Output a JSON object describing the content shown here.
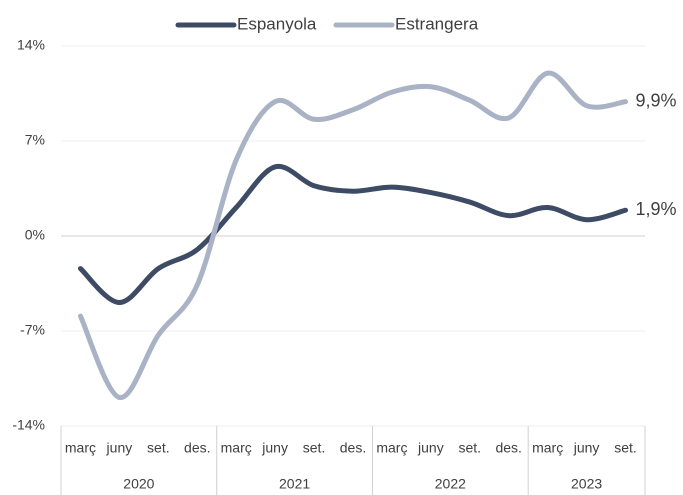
{
  "chart_data": {
    "type": "line",
    "categories": [
      "març",
      "juny",
      "set.",
      "des.",
      "març",
      "juny",
      "set.",
      "des.",
      "març",
      "juny",
      "set.",
      "des.",
      "març",
      "juny",
      "set."
    ],
    "category_groups": [
      "2020",
      "2021",
      "2022",
      "2023"
    ],
    "series": [
      {
        "name": "Espanyola",
        "color": "#3e4b64",
        "values": [
          -2.4,
          -4.9,
          -2.4,
          -1.0,
          2.1,
          5.1,
          3.7,
          3.3,
          3.6,
          3.2,
          2.5,
          1.5,
          2.1,
          1.2,
          1.9
        ],
        "value_labels": [
          null,
          null,
          null,
          null,
          null,
          null,
          null,
          null,
          null,
          null,
          null,
          null,
          null,
          null,
          "1,9%"
        ]
      },
      {
        "name": "Estrangera",
        "color": "#a9b3c5",
        "values": [
          -5.9,
          -11.9,
          -7.3,
          -3.6,
          5.6,
          9.9,
          8.6,
          9.3,
          10.6,
          11.0,
          10.0,
          8.7,
          12.0,
          9.6,
          9.9
        ],
        "value_labels": [
          null,
          null,
          null,
          null,
          null,
          null,
          null,
          null,
          null,
          null,
          null,
          null,
          null,
          null,
          "9,9%"
        ]
      }
    ],
    "ylim": [
      -14,
      14
    ],
    "yticks": [
      {
        "value": -14,
        "label": "-14%"
      },
      {
        "value": -7,
        "label": "-7%"
      },
      {
        "value": 0,
        "label": "0%"
      },
      {
        "value": 7,
        "label": "7%"
      },
      {
        "value": 14,
        "label": "14%"
      }
    ],
    "grid": true,
    "legend": "top"
  }
}
